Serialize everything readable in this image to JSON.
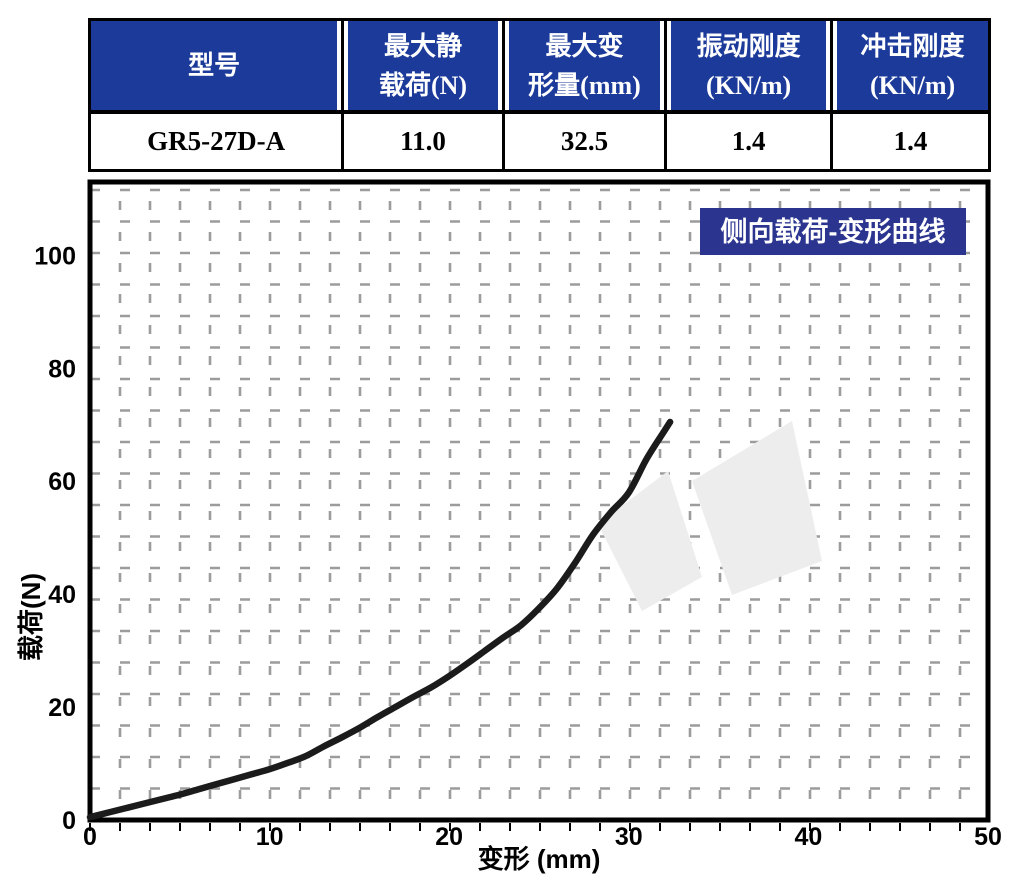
{
  "table": {
    "header_bg": "#1c3a9a",
    "header_text_color": "#ffffff",
    "columns": [
      {
        "lines": [
          "型号"
        ]
      },
      {
        "lines": [
          "最大静",
          "载荷(N)"
        ]
      },
      {
        "lines": [
          "最大变",
          "形量(mm)"
        ]
      },
      {
        "lines": [
          "振动刚度",
          "(KN/m)"
        ]
      },
      {
        "lines": [
          "冲击刚度",
          "(KN/m)"
        ]
      }
    ],
    "row": [
      "GR5-27D-A",
      "11.0",
      "32.5",
      "1.4",
      "1.4"
    ]
  },
  "chart_data": {
    "type": "line",
    "title": "侧向载荷-变形曲线",
    "title_bg": "#2b3590",
    "title_color": "#ffffff",
    "xlabel": "变形 (mm)",
    "ylabel": "载荷(N)",
    "xlim": [
      0,
      50
    ],
    "ylim": [
      0,
      113
    ],
    "xticks": [
      0,
      10,
      20,
      30,
      40,
      50
    ],
    "yticks": [
      0,
      20,
      40,
      60,
      80,
      100
    ],
    "grid": "dashed",
    "legend": "none",
    "series": [
      {
        "name": "侧向载荷-变形曲线",
        "color": "#1b1b1b",
        "points": [
          [
            0,
            0.5
          ],
          [
            1,
            1.3
          ],
          [
            2,
            2.1
          ],
          [
            3,
            2.9
          ],
          [
            4,
            3.7
          ],
          [
            5,
            4.5
          ],
          [
            6,
            5.4
          ],
          [
            7,
            6.3
          ],
          [
            8,
            7.2
          ],
          [
            9,
            8.1
          ],
          [
            10,
            9.0
          ],
          [
            11,
            10.1
          ],
          [
            12,
            11.3
          ],
          [
            13,
            13.0
          ],
          [
            14,
            14.6
          ],
          [
            15,
            16.3
          ],
          [
            16,
            18.2
          ],
          [
            17,
            20.0
          ],
          [
            18,
            21.8
          ],
          [
            19,
            23.5
          ],
          [
            20,
            25.5
          ],
          [
            21,
            27.7
          ],
          [
            22,
            30.0
          ],
          [
            23,
            32.3
          ],
          [
            24,
            34.5
          ],
          [
            25,
            37.5
          ],
          [
            26,
            41.0
          ],
          [
            27,
            45.5
          ],
          [
            28,
            50.5
          ],
          [
            29,
            54.5
          ],
          [
            30,
            58.0
          ],
          [
            31,
            64.0
          ],
          [
            32,
            69.0
          ],
          [
            32.3,
            70.5
          ]
        ]
      }
    ]
  }
}
